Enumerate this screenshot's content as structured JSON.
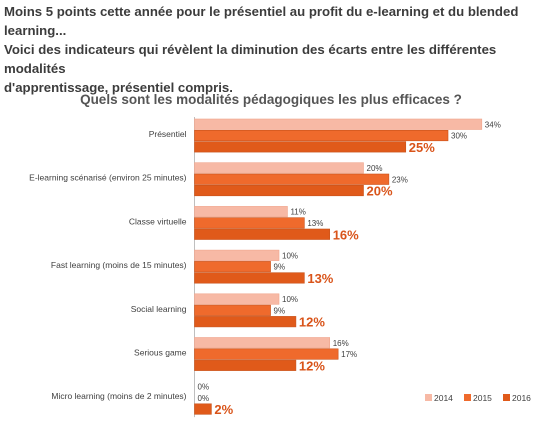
{
  "intro": {
    "line1": "Moins 5 points cette année pour le présentiel au profit du e-learning et du blended learning...",
    "line2": "Voici des indicateurs qui révèlent la diminution des écarts entre les différentes modalités",
    "line3": "d'apprentissage, présentiel compris."
  },
  "chart_data": {
    "type": "bar",
    "orientation": "horizontal",
    "title": "Quels sont les modalités pédagogiques les plus efficaces ?",
    "categories": [
      "Présentiel",
      "E-learning scénarisé (environ 25 minutes)",
      "Classe virtuelle",
      "Fast learning (moins de 15 minutes)",
      "Social learning",
      "Serious game",
      "Micro learning (moins de 2 minutes)"
    ],
    "series": [
      {
        "name": "2014",
        "color": "#f7b9a5",
        "values": [
          34,
          20,
          11,
          10,
          10,
          16,
          0
        ],
        "labels": [
          "34%",
          "20%",
          "11%",
          "10%",
          "10%",
          "16%",
          "0%"
        ]
      },
      {
        "name": "2015",
        "color": "#ef6a2c",
        "values": [
          30,
          23,
          13,
          9,
          9,
          17,
          0
        ],
        "labels": [
          "30%",
          "23%",
          "13%",
          "9%",
          "9%",
          "17%",
          "0%"
        ]
      },
      {
        "name": "2016",
        "color": "#e05a1a",
        "values": [
          25,
          20,
          16,
          13,
          12,
          12,
          2
        ],
        "labels": [
          "25%",
          "20%",
          "16%",
          "13%",
          "12%",
          "12%",
          "2%"
        ]
      }
    ],
    "label_color_2016": "#d9541a",
    "legend_position": "bottom-right",
    "grid": false
  }
}
